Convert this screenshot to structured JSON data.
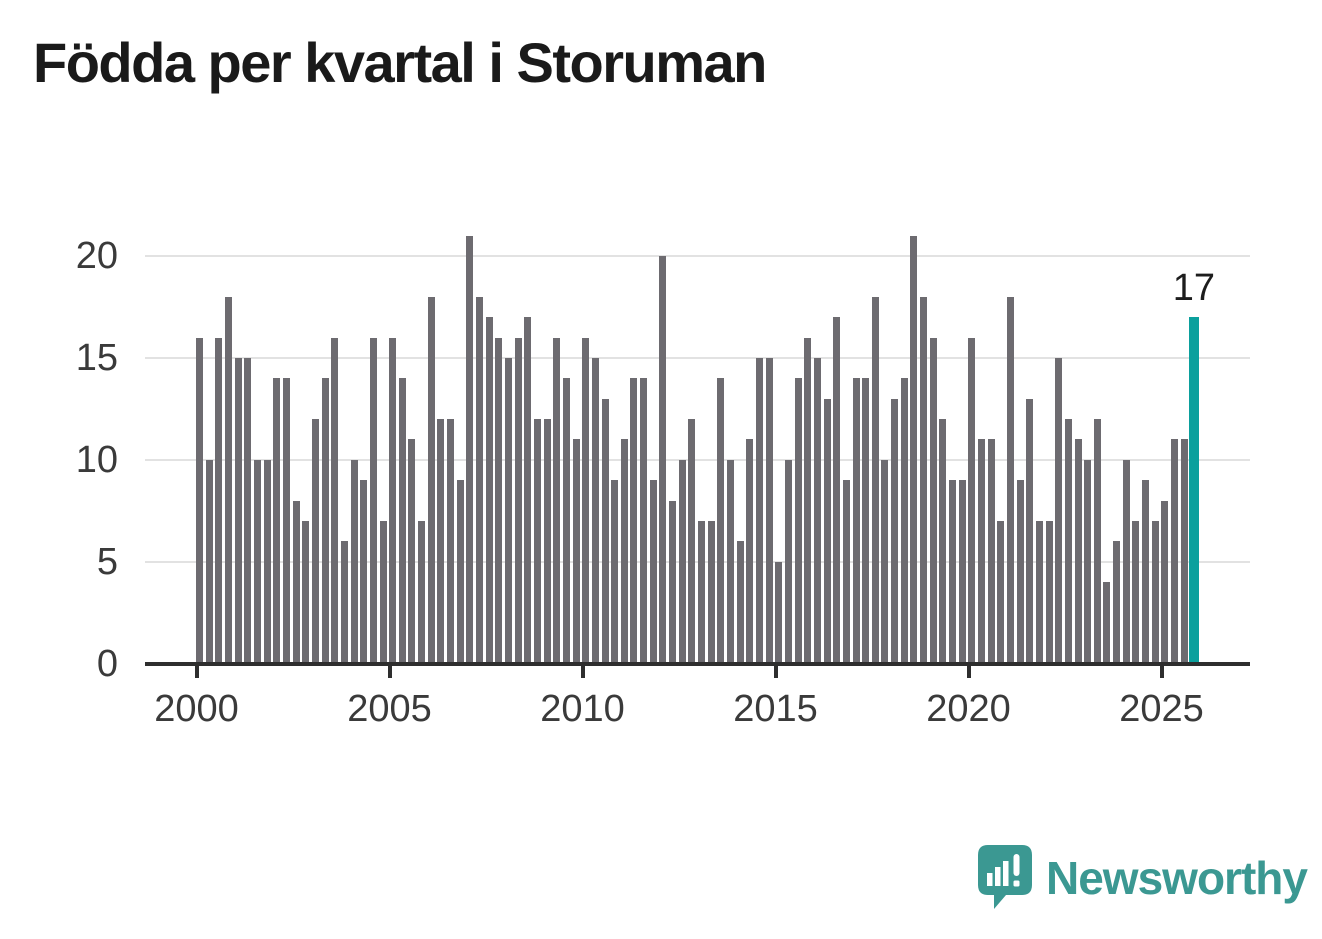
{
  "title": "Födda per kvartal i Storuman",
  "chart_data": {
    "type": "bar",
    "title": "Födda per kvartal i Storuman",
    "ylabel": "",
    "xlabel": "",
    "ylim": [
      0,
      21
    ],
    "y_ticks": [
      0,
      5,
      10,
      15,
      20
    ],
    "x_tick_labels": [
      "2000",
      "2005",
      "2010",
      "2015",
      "2020",
      "2025"
    ],
    "grid": "horizontal",
    "bar_color": "#6d6b70",
    "highlight_color": "#0ba09d",
    "years": [
      {
        "year": 2000,
        "values": [
          16,
          10,
          16,
          18
        ]
      },
      {
        "year": 2001,
        "values": [
          15,
          15,
          10,
          10
        ]
      },
      {
        "year": 2002,
        "values": [
          14,
          14,
          8,
          7
        ]
      },
      {
        "year": 2003,
        "values": [
          12,
          14,
          16,
          6
        ]
      },
      {
        "year": 2004,
        "values": [
          10,
          9,
          16,
          7
        ]
      },
      {
        "year": 2005,
        "values": [
          16,
          14,
          11,
          7
        ]
      },
      {
        "year": 2006,
        "values": [
          18,
          12,
          12,
          9
        ]
      },
      {
        "year": 2007,
        "values": [
          21,
          18,
          17,
          16
        ]
      },
      {
        "year": 2008,
        "values": [
          15,
          16,
          17,
          12
        ]
      },
      {
        "year": 2009,
        "values": [
          12,
          16,
          14,
          11
        ]
      },
      {
        "year": 2010,
        "values": [
          16,
          15,
          13,
          9
        ]
      },
      {
        "year": 2011,
        "values": [
          11,
          14,
          14,
          9
        ]
      },
      {
        "year": 2012,
        "values": [
          20,
          8,
          10,
          12
        ]
      },
      {
        "year": 2013,
        "values": [
          7,
          7,
          14,
          10
        ]
      },
      {
        "year": 2014,
        "values": [
          6,
          11,
          15,
          15
        ]
      },
      {
        "year": 2015,
        "values": [
          5,
          10,
          14,
          16
        ]
      },
      {
        "year": 2016,
        "values": [
          15,
          13,
          17,
          9
        ]
      },
      {
        "year": 2017,
        "values": [
          14,
          14,
          18,
          10
        ]
      },
      {
        "year": 2018,
        "values": [
          13,
          14,
          21,
          18
        ]
      },
      {
        "year": 2019,
        "values": [
          16,
          12,
          9,
          9
        ]
      },
      {
        "year": 2020,
        "values": [
          16,
          11,
          11,
          7
        ]
      },
      {
        "year": 2021,
        "values": [
          18,
          9,
          13,
          7
        ]
      },
      {
        "year": 2022,
        "values": [
          7,
          15,
          12,
          11
        ]
      },
      {
        "year": 2023,
        "values": [
          10,
          12,
          4,
          6
        ]
      },
      {
        "year": 2024,
        "values": [
          10,
          7,
          9,
          7
        ]
      },
      {
        "year": 2025,
        "values": [
          8,
          11,
          11,
          17
        ]
      }
    ],
    "highlight": {
      "year": 2025,
      "quarter": "Q4",
      "value": 17,
      "label": "17"
    },
    "legend": "none"
  },
  "branding": {
    "name": "Newsworthy",
    "logo_icon": "newsworthy-speech-bubble-chart-icon",
    "color": "#3b9892"
  }
}
